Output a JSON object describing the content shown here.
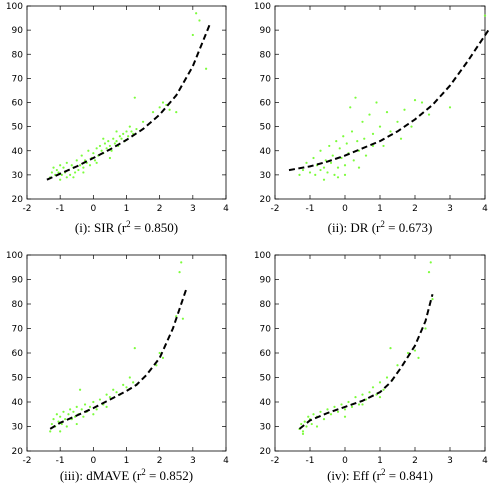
{
  "chart_data": [
    {
      "type": "scatter",
      "caption": {
        "prefix": "(i): SIR (r",
        "sup": "2",
        "suffix": " = 0.850)"
      },
      "xlim": [
        -2,
        4
      ],
      "ylim": [
        20,
        100
      ],
      "xticks": [
        -2,
        -1,
        0,
        1,
        2,
        3,
        4
      ],
      "yticks": [
        20,
        30,
        40,
        50,
        60,
        70,
        80,
        90,
        100
      ],
      "grid": false,
      "colors": {
        "points": "#7CFC3C",
        "curve": "#000000"
      },
      "points": [
        [
          -1.3,
          29
        ],
        [
          -1.25,
          31
        ],
        [
          -1.2,
          33
        ],
        [
          -1.15,
          30
        ],
        [
          -1.1,
          32
        ],
        [
          -1.05,
          31
        ],
        [
          -1.0,
          34
        ],
        [
          -0.95,
          30
        ],
        [
          -0.9,
          33
        ],
        [
          -0.85,
          31
        ],
        [
          -0.8,
          35
        ],
        [
          -0.75,
          32
        ],
        [
          -0.7,
          30
        ],
        [
          -0.65,
          34
        ],
        [
          -0.6,
          33
        ],
        [
          -0.55,
          31
        ],
        [
          -0.5,
          36
        ],
        [
          -0.45,
          32
        ],
        [
          -0.4,
          34
        ],
        [
          -0.35,
          38
        ],
        [
          -0.3,
          33
        ],
        [
          -0.25,
          36
        ],
        [
          -0.2,
          35
        ],
        [
          -0.15,
          40
        ],
        [
          -0.1,
          34
        ],
        [
          -0.05,
          37
        ],
        [
          0.0,
          39
        ],
        [
          0.05,
          36
        ],
        [
          0.1,
          41
        ],
        [
          0.15,
          38
        ],
        [
          0.2,
          42
        ],
        [
          0.25,
          40
        ],
        [
          0.3,
          39
        ],
        [
          0.35,
          43
        ],
        [
          0.4,
          41
        ],
        [
          0.45,
          44
        ],
        [
          0.5,
          42
        ],
        [
          0.55,
          40
        ],
        [
          0.6,
          45
        ],
        [
          0.65,
          43
        ],
        [
          0.7,
          44
        ],
        [
          0.75,
          42
        ],
        [
          0.8,
          46
        ],
        [
          0.85,
          45
        ],
        [
          0.9,
          47
        ],
        [
          0.95,
          44
        ],
        [
          1.0,
          48
        ],
        [
          1.05,
          46
        ],
        [
          1.1,
          50
        ],
        [
          1.15,
          48
        ],
        [
          1.2,
          47
        ],
        [
          1.25,
          62
        ],
        [
          1.3,
          49
        ],
        [
          1.5,
          52
        ],
        [
          1.8,
          56
        ],
        [
          2.0,
          58
        ],
        [
          2.1,
          60
        ],
        [
          2.2,
          59
        ],
        [
          2.3,
          57
        ],
        [
          2.5,
          56
        ],
        [
          3.0,
          88
        ],
        [
          3.1,
          97
        ],
        [
          3.2,
          94
        ],
        [
          3.4,
          74
        ],
        [
          -0.6,
          29
        ],
        [
          -0.3,
          31
        ],
        [
          0.1,
          35
        ],
        [
          0.5,
          37
        ],
        [
          -1.0,
          28
        ],
        [
          -0.8,
          29
        ],
        [
          0.3,
          45
        ],
        [
          0.7,
          48
        ]
      ],
      "curve": [
        [
          -1.4,
          28
        ],
        [
          -1.0,
          30.5
        ],
        [
          -0.5,
          33.5
        ],
        [
          0.0,
          37
        ],
        [
          0.5,
          40.5
        ],
        [
          1.0,
          44.5
        ],
        [
          1.5,
          49
        ],
        [
          2.0,
          55
        ],
        [
          2.5,
          63
        ],
        [
          3.0,
          75
        ],
        [
          3.5,
          92
        ]
      ]
    },
    {
      "type": "scatter",
      "caption": {
        "prefix": "(ii): DR (r",
        "sup": "2",
        "suffix": " = 0.673)"
      },
      "xlim": [
        -2,
        4
      ],
      "ylim": [
        20,
        100
      ],
      "xticks": [
        -2,
        -1,
        0,
        1,
        2,
        3,
        4
      ],
      "yticks": [
        20,
        30,
        40,
        50,
        60,
        70,
        80,
        90,
        100
      ],
      "grid": false,
      "colors": {
        "points": "#7CFC3C",
        "curve": "#000000"
      },
      "points": [
        [
          -1.2,
          32
        ],
        [
          -1.1,
          35
        ],
        [
          -1.0,
          31
        ],
        [
          -0.9,
          37
        ],
        [
          -0.85,
          30
        ],
        [
          -0.8,
          34
        ],
        [
          -0.7,
          40
        ],
        [
          -0.6,
          33
        ],
        [
          -0.55,
          36
        ],
        [
          -0.5,
          31
        ],
        [
          -0.45,
          42
        ],
        [
          -0.4,
          35
        ],
        [
          -0.35,
          38
        ],
        [
          -0.3,
          30
        ],
        [
          -0.25,
          44
        ],
        [
          -0.2,
          33
        ],
        [
          -0.15,
          41
        ],
        [
          -0.1,
          37
        ],
        [
          -0.05,
          46
        ],
        [
          0.0,
          34
        ],
        [
          0.05,
          43
        ],
        [
          0.1,
          39
        ],
        [
          0.15,
          58
        ],
        [
          0.2,
          48
        ],
        [
          0.25,
          36
        ],
        [
          0.3,
          62
        ],
        [
          0.35,
          44
        ],
        [
          0.4,
          40
        ],
        [
          0.5,
          52
        ],
        [
          0.55,
          45
        ],
        [
          0.6,
          38
        ],
        [
          0.7,
          55
        ],
        [
          0.8,
          47
        ],
        [
          0.9,
          60
        ],
        [
          1.0,
          50
        ],
        [
          1.1,
          42
        ],
        [
          1.2,
          56
        ],
        [
          1.3,
          48
        ],
        [
          1.5,
          52
        ],
        [
          1.7,
          57
        ],
        [
          1.9,
          50
        ],
        [
          2.0,
          61
        ],
        [
          2.2,
          60
        ],
        [
          2.4,
          55
        ],
        [
          3.0,
          58
        ],
        [
          4.0,
          96
        ],
        [
          -0.6,
          28
        ],
        [
          -0.2,
          29
        ],
        [
          0.0,
          30
        ],
        [
          -1.3,
          30
        ],
        [
          -0.7,
          32
        ],
        [
          0.4,
          33
        ],
        [
          0.8,
          42
        ],
        [
          1.6,
          45
        ]
      ],
      "curve": [
        [
          -1.6,
          32
        ],
        [
          -1.0,
          33.5
        ],
        [
          -0.5,
          35.5
        ],
        [
          0.0,
          38
        ],
        [
          0.5,
          41
        ],
        [
          1.0,
          44
        ],
        [
          1.5,
          48
        ],
        [
          2.0,
          53
        ],
        [
          2.5,
          59
        ],
        [
          3.0,
          67
        ],
        [
          3.5,
          77
        ],
        [
          4.1,
          90
        ]
      ]
    },
    {
      "type": "scatter",
      "caption": {
        "prefix": "(iii): dMAVE (r",
        "sup": "2",
        "suffix": " = 0.852)"
      },
      "xlim": [
        -2,
        4
      ],
      "ylim": [
        20,
        100
      ],
      "xticks": [
        -2,
        -1,
        0,
        1,
        2,
        3,
        4
      ],
      "yticks": [
        20,
        30,
        40,
        50,
        60,
        70,
        80,
        90,
        100
      ],
      "grid": false,
      "colors": {
        "points": "#7CFC3C",
        "curve": "#000000"
      },
      "points": [
        [
          -1.3,
          28
        ],
        [
          -1.25,
          31
        ],
        [
          -1.2,
          33
        ],
        [
          -1.15,
          30
        ],
        [
          -1.1,
          35
        ],
        [
          -1.05,
          32
        ],
        [
          -1.0,
          34
        ],
        [
          -0.95,
          31
        ],
        [
          -0.9,
          36
        ],
        [
          -0.85,
          33
        ],
        [
          -0.8,
          30
        ],
        [
          -0.75,
          35
        ],
        [
          -0.7,
          37
        ],
        [
          -0.65,
          33
        ],
        [
          -0.6,
          36
        ],
        [
          -0.55,
          34
        ],
        [
          -0.5,
          38
        ],
        [
          -0.45,
          35
        ],
        [
          -0.4,
          45
        ],
        [
          -0.35,
          37
        ],
        [
          -0.3,
          34
        ],
        [
          -0.25,
          39
        ],
        [
          -0.2,
          36
        ],
        [
          -0.1,
          38
        ],
        [
          0.0,
          40
        ],
        [
          0.1,
          37
        ],
        [
          0.2,
          41
        ],
        [
          0.3,
          39
        ],
        [
          0.4,
          43
        ],
        [
          0.5,
          42
        ],
        [
          0.6,
          45
        ],
        [
          0.7,
          44
        ],
        [
          0.8,
          43
        ],
        [
          0.9,
          47
        ],
        [
          1.0,
          46
        ],
        [
          1.1,
          50
        ],
        [
          1.2,
          48
        ],
        [
          1.25,
          62
        ],
        [
          1.3,
          47
        ],
        [
          1.9,
          55
        ],
        [
          2.0,
          60
        ],
        [
          2.1,
          58
        ],
        [
          2.5,
          75
        ],
        [
          2.6,
          93
        ],
        [
          2.65,
          97
        ],
        [
          2.7,
          74
        ],
        [
          -1.0,
          28
        ],
        [
          -0.5,
          31
        ],
        [
          0.0,
          35
        ],
        [
          0.4,
          38
        ]
      ],
      "curve": [
        [
          -1.3,
          29
        ],
        [
          -1.0,
          31.5
        ],
        [
          -0.5,
          34.5
        ],
        [
          0.0,
          37.5
        ],
        [
          0.5,
          41
        ],
        [
          1.0,
          44.5
        ],
        [
          1.3,
          47
        ],
        [
          1.6,
          51
        ],
        [
          2.0,
          58
        ],
        [
          2.4,
          70
        ],
        [
          2.8,
          86
        ]
      ]
    },
    {
      "type": "scatter",
      "caption": {
        "prefix": "(iv): Eff (r",
        "sup": "2",
        "suffix": " = 0.841)"
      },
      "xlim": [
        -2,
        4
      ],
      "ylim": [
        20,
        100
      ],
      "xticks": [
        -2,
        -1,
        0,
        1,
        2,
        3,
        4
      ],
      "yticks": [
        20,
        30,
        40,
        50,
        60,
        70,
        80,
        90,
        100
      ],
      "grid": false,
      "colors": {
        "points": "#7CFC3C",
        "curve": "#000000"
      },
      "points": [
        [
          -1.3,
          29
        ],
        [
          -1.25,
          31
        ],
        [
          -1.2,
          28
        ],
        [
          -1.15,
          32
        ],
        [
          -1.1,
          30
        ],
        [
          -1.05,
          34
        ],
        [
          -1.0,
          33
        ],
        [
          -0.95,
          31
        ],
        [
          -0.9,
          35
        ],
        [
          -0.8,
          34
        ],
        [
          -0.7,
          36
        ],
        [
          -0.6,
          33
        ],
        [
          -0.5,
          37
        ],
        [
          -0.4,
          35
        ],
        [
          -0.3,
          38
        ],
        [
          -0.2,
          36
        ],
        [
          -0.1,
          39
        ],
        [
          0.0,
          37
        ],
        [
          0.1,
          40
        ],
        [
          0.2,
          38
        ],
        [
          0.3,
          42
        ],
        [
          0.4,
          39
        ],
        [
          0.5,
          43
        ],
        [
          0.6,
          41
        ],
        [
          0.7,
          44
        ],
        [
          0.8,
          46
        ],
        [
          0.9,
          43
        ],
        [
          1.0,
          48
        ],
        [
          1.1,
          45
        ],
        [
          1.2,
          50
        ],
        [
          1.3,
          62
        ],
        [
          1.35,
          49
        ],
        [
          1.5,
          55
        ],
        [
          1.8,
          60
        ],
        [
          2.0,
          61
        ],
        [
          2.1,
          58
        ],
        [
          2.3,
          70
        ],
        [
          2.4,
          93
        ],
        [
          2.45,
          97
        ],
        [
          2.5,
          82
        ],
        [
          -1.2,
          27
        ],
        [
          -0.8,
          30
        ],
        [
          0.0,
          34
        ],
        [
          0.5,
          39
        ],
        [
          1.0,
          42
        ]
      ],
      "curve": [
        [
          -1.3,
          29
        ],
        [
          -1.0,
          32.5
        ],
        [
          -0.5,
          35.5
        ],
        [
          0.0,
          38
        ],
        [
          0.5,
          40.5
        ],
        [
          1.0,
          44
        ],
        [
          1.3,
          48
        ],
        [
          1.6,
          54
        ],
        [
          2.0,
          63
        ],
        [
          2.3,
          73
        ],
        [
          2.5,
          84
        ]
      ]
    }
  ]
}
